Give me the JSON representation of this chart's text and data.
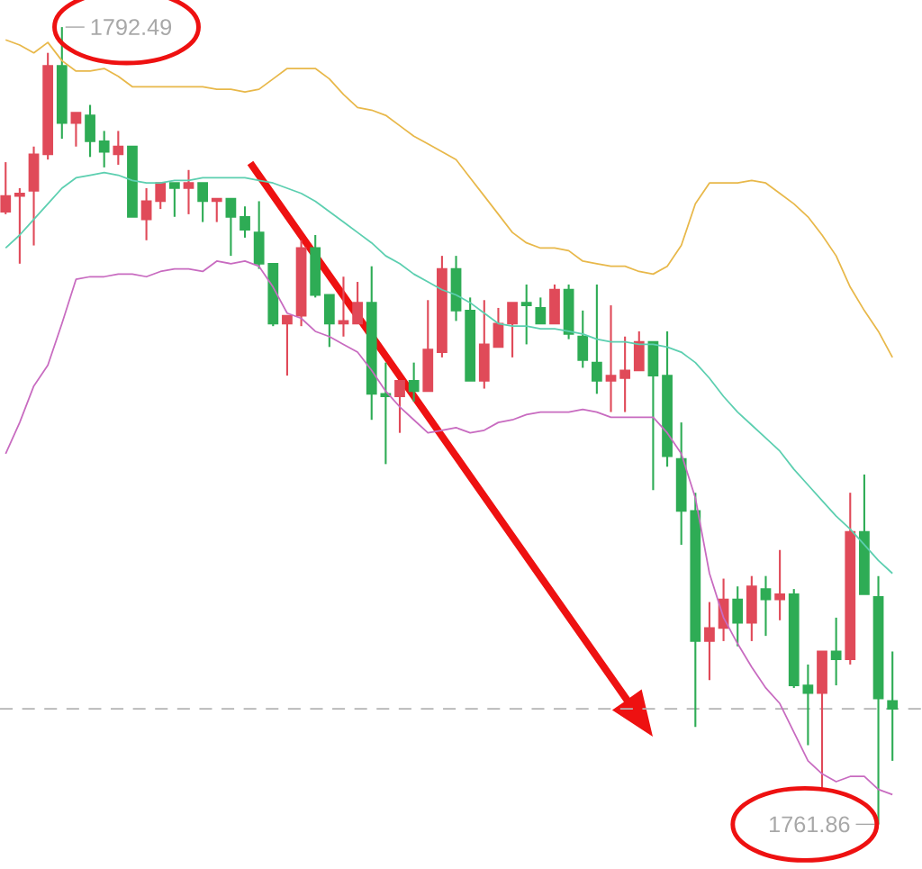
{
  "chart_data": {
    "type": "candlestick",
    "categories": [
      null,
      null,
      null,
      null,
      null,
      null,
      null,
      null,
      null,
      null,
      null,
      null,
      null,
      null,
      null,
      null,
      null,
      null,
      null,
      null,
      null,
      null,
      null,
      null,
      null,
      null,
      null,
      null,
      null,
      null,
      null,
      null,
      null,
      null,
      null,
      null,
      null,
      null,
      null,
      null,
      null,
      null,
      null,
      null,
      null,
      null,
      null,
      null,
      null,
      null,
      null,
      null,
      null,
      null,
      null,
      null,
      null,
      null,
      null,
      null,
      null,
      null,
      null,
      null
    ],
    "ohlc": [
      [
        1785.4,
        1787.3,
        1785.3,
        1786.0
      ],
      [
        1786.0,
        1786.3,
        1783.4,
        1786.1
      ],
      [
        1786.2,
        1787.9,
        1784.1,
        1787.6
      ],
      [
        1787.6,
        1791.5,
        1787.4,
        1791.0
      ],
      [
        1791.0,
        1792.49,
        1788.2,
        1788.8
      ],
      [
        1788.8,
        1789.2,
        1787.9,
        1789.2
      ],
      [
        1789.1,
        1789.5,
        1787.5,
        1788.1
      ],
      [
        1788.1,
        1788.5,
        1787.1,
        1787.7
      ],
      [
        1787.6,
        1788.5,
        1787.2,
        1787.9
      ],
      [
        1787.9,
        1787.9,
        1785.2,
        1785.2
      ],
      [
        1785.1,
        1786.3,
        1784.3,
        1785.8
      ],
      [
        1785.8,
        1786.5,
        1785.5,
        1786.5
      ],
      [
        1786.5,
        1786.5,
        1785.2,
        1786.3
      ],
      [
        1786.3,
        1787.0,
        1785.3,
        1786.5
      ],
      [
        1786.5,
        1786.5,
        1785.0,
        1785.8
      ],
      [
        1785.8,
        1785.9,
        1785.0,
        1785.9
      ],
      [
        1785.9,
        1785.9,
        1783.7,
        1785.2
      ],
      [
        1785.2,
        1785.6,
        1784.4,
        1784.7
      ],
      [
        1784.6,
        1785.8,
        1783.2,
        1783.4
      ],
      [
        1783.4,
        1783.4,
        1781.0,
        1781.1
      ],
      [
        1781.1,
        1781.4,
        1779.1,
        1781.4
      ],
      [
        1781.4,
        1784.3,
        1781.0,
        1784.0
      ],
      [
        1784.0,
        1784.5,
        1782.1,
        1782.2
      ],
      [
        1782.2,
        1782.2,
        1780.2,
        1781.1
      ],
      [
        1781.1,
        1782.9,
        1780.6,
        1781.2
      ],
      [
        1781.1,
        1782.7,
        1781.1,
        1781.9
      ],
      [
        1781.9,
        1783.3,
        1777.4,
        1778.4
      ],
      [
        1778.4,
        1779.6,
        1775.7,
        1778.3
      ],
      [
        1778.3,
        1778.9,
        1776.9,
        1778.9
      ],
      [
        1778.9,
        1779.6,
        1778.1,
        1778.5
      ],
      [
        1778.5,
        1782.0,
        1778.5,
        1780.1
      ],
      [
        1780.0,
        1783.7,
        1779.8,
        1783.2
      ],
      [
        1783.2,
        1783.7,
        1781.2,
        1781.6
      ],
      [
        1781.6,
        1782.1,
        1778.9,
        1778.9
      ],
      [
        1778.9,
        1782.0,
        1778.6,
        1780.3
      ],
      [
        1780.2,
        1781.7,
        1780.2,
        1781.1
      ],
      [
        1781.1,
        1781.9,
        1779.8,
        1781.9
      ],
      [
        1781.9,
        1782.6,
        1780.3,
        1781.8
      ],
      [
        1781.7,
        1782.1,
        1781.1,
        1781.1
      ],
      [
        1781.1,
        1782.6,
        1781.1,
        1782.4
      ],
      [
        1782.4,
        1782.6,
        1780.5,
        1780.7
      ],
      [
        1780.6,
        1781.6,
        1779.4,
        1779.7
      ],
      [
        1779.6,
        1782.6,
        1778.4,
        1778.9
      ],
      [
        1778.9,
        1781.8,
        1777.7,
        1779.1
      ],
      [
        1779.0,
        1780.6,
        1777.7,
        1779.3
      ],
      [
        1779.3,
        1780.8,
        1779.3,
        1780.4
      ],
      [
        1780.4,
        1780.4,
        1774.7,
        1779.1
      ],
      [
        1779.1,
        1780.8,
        1775.6,
        1776.0
      ],
      [
        1775.9,
        1777.3,
        1772.6,
        1773.9
      ],
      [
        1773.9,
        1774.6,
        1765.6,
        1768.9
      ],
      [
        1768.9,
        1770.4,
        1767.4,
        1769.4
      ],
      [
        1769.4,
        1771.3,
        1768.9,
        1770.5
      ],
      [
        1770.5,
        1771.0,
        1768.7,
        1769.6
      ],
      [
        1769.6,
        1771.4,
        1768.9,
        1771.0
      ],
      [
        1770.9,
        1771.4,
        1769.1,
        1770.5
      ],
      [
        1770.5,
        1772.4,
        1769.7,
        1770.7
      ],
      [
        1770.7,
        1770.9,
        1767.1,
        1767.2
      ],
      [
        1767.2,
        1768.0,
        1764.9,
        1766.9
      ],
      [
        1766.9,
        1768.5,
        1763.2,
        1768.5
      ],
      [
        1768.5,
        1769.8,
        1767.2,
        1768.2
      ],
      [
        1768.2,
        1774.6,
        1768.0,
        1773.1
      ],
      [
        1773.1,
        1775.3,
        1770.7,
        1770.7
      ],
      [
        1770.6,
        1771.4,
        1761.86,
        1766.7
      ],
      [
        1766.6,
        1768.5,
        1764.3,
        1766.3
      ]
    ],
    "colors": [
      "#e04a59",
      "#e04a59",
      "#e04a59",
      "#e04a59",
      "#2eac55",
      "#e04a59",
      "#2eac55",
      "#2eac55",
      "#e04a59",
      "#2eac55",
      "#e04a59",
      "#e04a59",
      "#2eac55",
      "#e04a59",
      "#2eac55",
      "#e04a59",
      "#2eac55",
      "#2eac55",
      "#2eac55",
      "#2eac55",
      "#e04a59",
      "#e04a59",
      "#2eac55",
      "#2eac55",
      "#e04a59",
      "#e04a59",
      "#2eac55",
      "#2eac55",
      "#e04a59",
      "#2eac55",
      "#e04a59",
      "#e04a59",
      "#2eac55",
      "#2eac55",
      "#e04a59",
      "#e04a59",
      "#e04a59",
      "#2eac55",
      "#2eac55",
      "#e04a59",
      "#2eac55",
      "#2eac55",
      "#2eac55",
      "#e04a59",
      "#e04a59",
      "#e04a59",
      "#2eac55",
      "#2eac55",
      "#2eac55",
      "#2eac55",
      "#e04a59",
      "#e04a59",
      "#2eac55",
      "#e04a59",
      "#2eac55",
      "#e04a59",
      "#2eac55",
      "#2eac55",
      "#e04a59",
      "#2eac55",
      "#e04a59",
      "#2eac55",
      "#2eac55",
      "#2eac55"
    ],
    "series": [
      {
        "type": "line",
        "color": "#e8b84a",
        "values": [
          1792.0,
          1791.8,
          1791.5,
          1791.9,
          1791.2,
          1790.8,
          1790.8,
          1790.9,
          1790.6,
          1790.2,
          1790.2,
          1790.2,
          1790.2,
          1790.2,
          1790.2,
          1790.1,
          1790.1,
          1790.0,
          1790.1,
          1790.5,
          1790.9,
          1790.9,
          1790.9,
          1790.5,
          1789.9,
          1789.4,
          1789.3,
          1789.1,
          1788.7,
          1788.3,
          1788.0,
          1787.7,
          1787.4,
          1786.7,
          1786.0,
          1785.3,
          1784.6,
          1784.2,
          1784.0,
          1784.0,
          1783.9,
          1783.5,
          1783.4,
          1783.3,
          1783.3,
          1783.1,
          1783.0,
          1783.3,
          1784.1,
          1785.7,
          1786.5,
          1786.5,
          1786.5,
          1786.6,
          1786.5,
          1786.1,
          1785.7,
          1785.2,
          1784.5,
          1783.7,
          1782.5,
          1781.6,
          1780.8,
          1779.8
        ]
      },
      {
        "type": "line",
        "color": "#5ccfb0",
        "values": [
          1784.0,
          1784.5,
          1785.1,
          1785.7,
          1786.3,
          1786.7,
          1786.8,
          1786.9,
          1786.8,
          1786.6,
          1786.5,
          1786.5,
          1786.6,
          1786.6,
          1786.7,
          1786.7,
          1786.7,
          1786.7,
          1786.6,
          1786.5,
          1786.3,
          1786.1,
          1785.8,
          1785.4,
          1785.0,
          1784.6,
          1784.2,
          1783.7,
          1783.4,
          1783.0,
          1782.7,
          1782.4,
          1782.2,
          1781.9,
          1781.5,
          1781.1,
          1781.0,
          1781.0,
          1780.9,
          1780.9,
          1780.8,
          1780.7,
          1780.5,
          1780.4,
          1780.4,
          1780.3,
          1780.3,
          1780.2,
          1780.0,
          1779.6,
          1779.0,
          1778.3,
          1777.7,
          1777.2,
          1776.7,
          1776.2,
          1775.5,
          1774.9,
          1774.3,
          1773.7,
          1773.2,
          1772.6,
          1772.0,
          1771.5
        ]
      },
      {
        "type": "line",
        "color": "#c86bc0",
        "values": [
          1776.1,
          1777.3,
          1778.7,
          1779.5,
          1781.1,
          1782.8,
          1782.9,
          1782.9,
          1783.0,
          1783.0,
          1782.9,
          1783.1,
          1783.2,
          1783.2,
          1783.1,
          1783.5,
          1783.4,
          1783.5,
          1783.3,
          1782.5,
          1781.5,
          1781.3,
          1780.8,
          1780.6,
          1780.3,
          1780.0,
          1779.3,
          1778.5,
          1777.9,
          1777.4,
          1776.9,
          1777.0,
          1777.1,
          1776.9,
          1777.0,
          1777.3,
          1777.4,
          1777.6,
          1777.7,
          1777.7,
          1777.7,
          1777.8,
          1777.7,
          1777.5,
          1777.5,
          1777.5,
          1777.5,
          1776.9,
          1776.1,
          1774.4,
          1771.5,
          1769.8,
          1768.8,
          1767.9,
          1767.1,
          1766.5,
          1765.4,
          1764.3,
          1763.8,
          1763.5,
          1763.7,
          1763.7,
          1763.2,
          1763.0
        ]
      }
    ],
    "annotations": [
      "1792.49",
      "1761.86"
    ],
    "ref_lines": [
      {
        "axis": "y",
        "value": 1766.3,
        "color": "#b4b4b4",
        "line_style": "dashed"
      }
    ]
  }
}
